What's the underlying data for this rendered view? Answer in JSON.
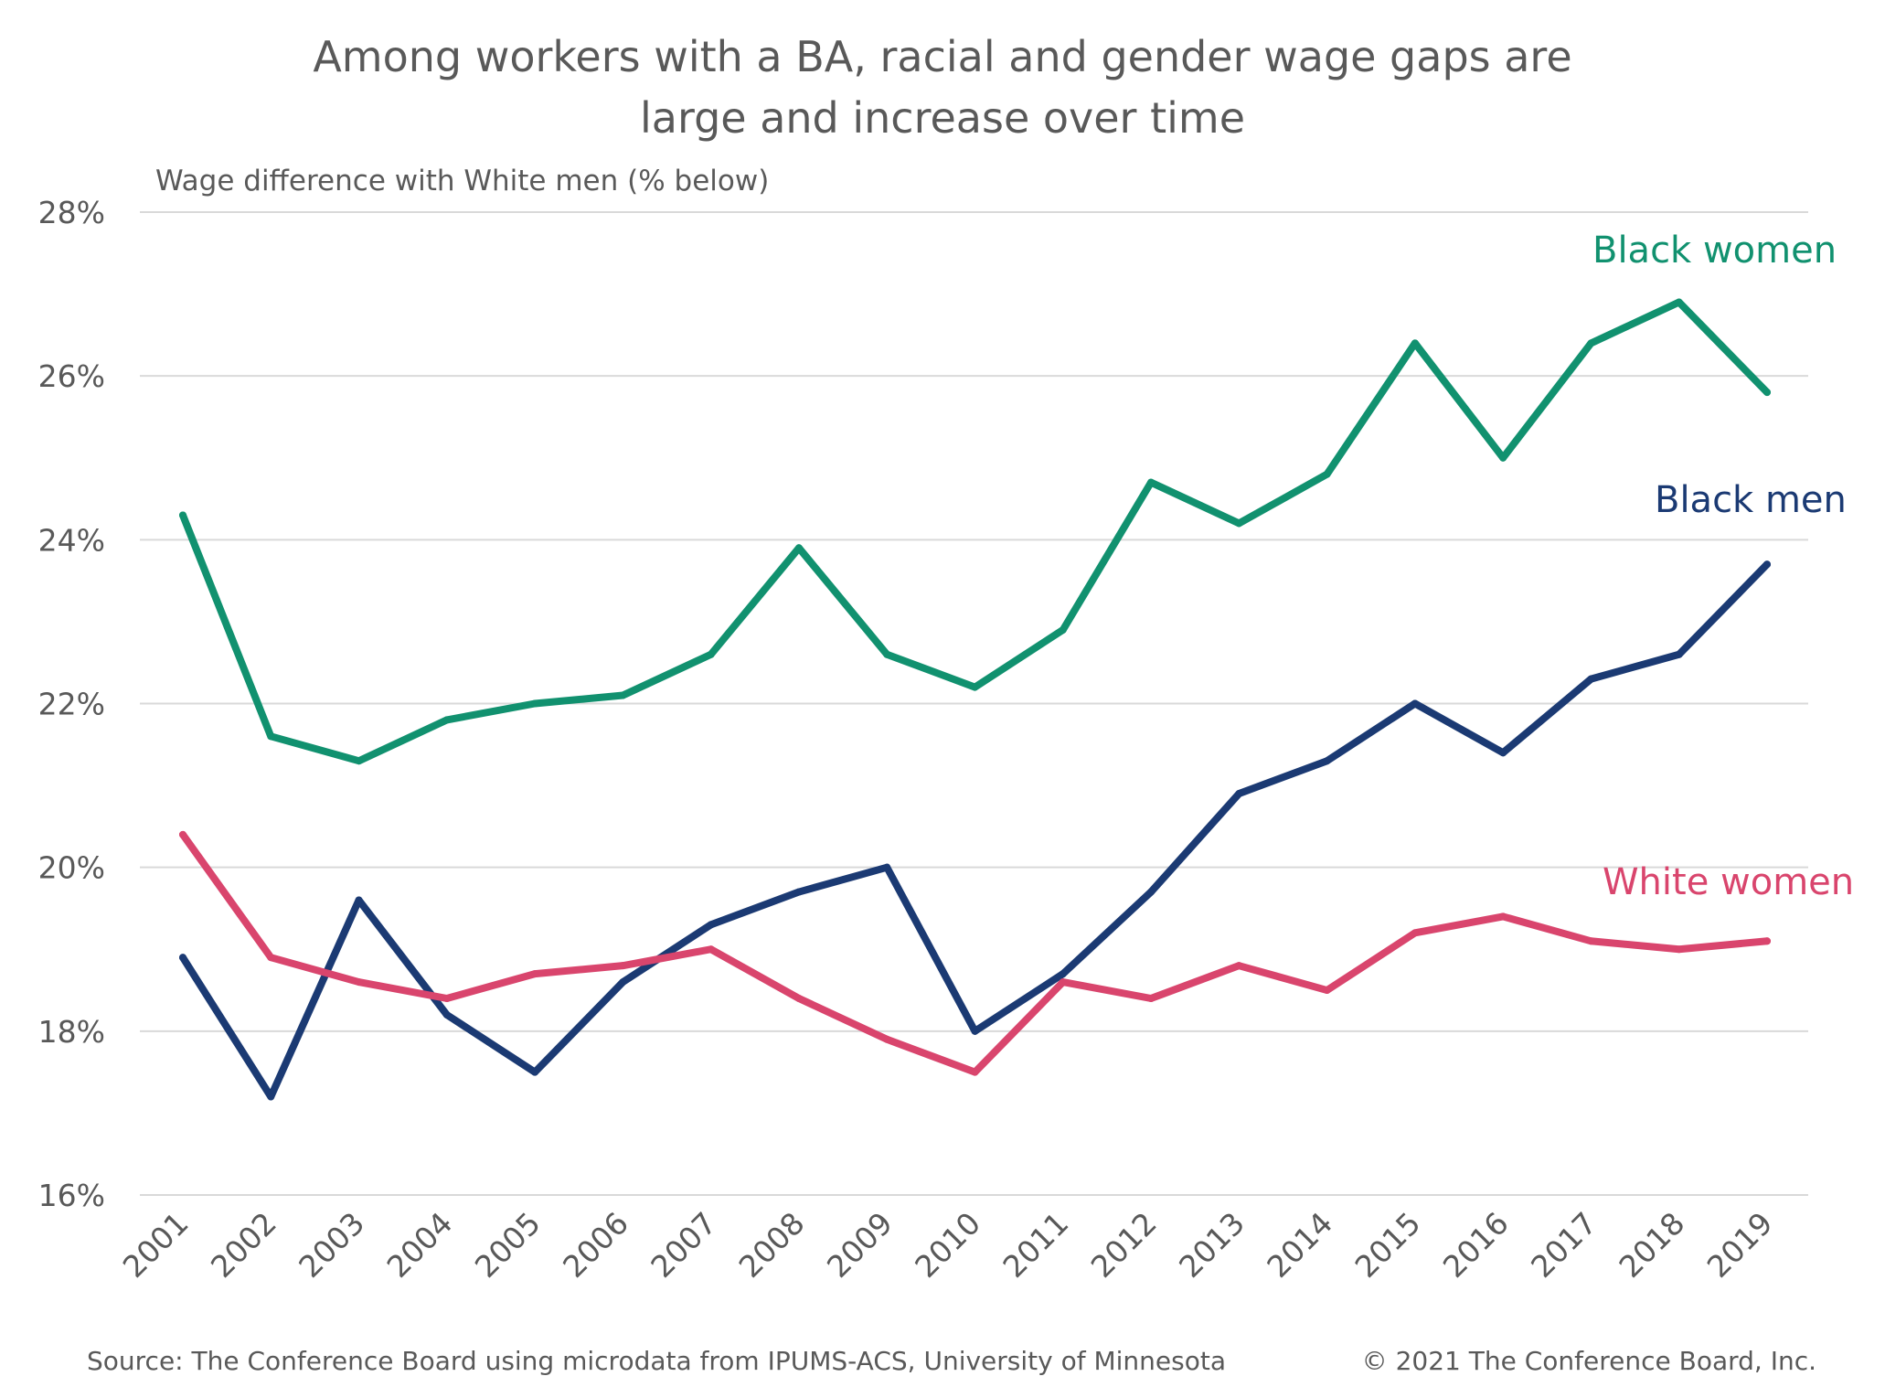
{
  "chart_data": {
    "type": "line",
    "title": [
      "Among workers with a BA, racial and gender wage gaps are",
      "large and increase over time"
    ],
    "ylabel": "Wage difference with White men (% below)",
    "ylim": [
      16,
      28
    ],
    "yticks": [
      "16%",
      "18%",
      "20%",
      "22%",
      "24%",
      "26%",
      "28%"
    ],
    "grid": true,
    "legend": "direct labels near line ends",
    "x": [
      "2001",
      "2002",
      "2003",
      "2004",
      "2005",
      "2006",
      "2007",
      "2008",
      "2009",
      "2010",
      "2011",
      "2012",
      "2013",
      "2014",
      "2015",
      "2016",
      "2017",
      "2018",
      "2019"
    ],
    "series": [
      {
        "name": "Black women",
        "color": "#11916f",
        "values": [
          24.3,
          21.6,
          21.3,
          21.8,
          22.0,
          22.1,
          22.6,
          23.9,
          22.6,
          22.2,
          22.9,
          24.7,
          24.2,
          24.8,
          26.4,
          25.0,
          26.4,
          26.9,
          25.8
        ]
      },
      {
        "name": "Black men",
        "color": "#1b3a73",
        "values": [
          18.9,
          17.2,
          19.6,
          18.2,
          17.5,
          18.6,
          19.3,
          19.7,
          20.0,
          18.0,
          18.7,
          19.7,
          20.9,
          21.3,
          22.0,
          21.4,
          22.3,
          22.6,
          23.7
        ]
      },
      {
        "name": "White women",
        "color": "#d9456d",
        "values": [
          20.4,
          18.9,
          18.6,
          18.4,
          18.7,
          18.8,
          19.0,
          18.4,
          17.9,
          17.5,
          18.6,
          18.4,
          18.8,
          18.5,
          19.2,
          19.4,
          19.1,
          19.0,
          19.1
        ]
      }
    ]
  },
  "footer": {
    "source": "Source: The Conference Board using microdata from IPUMS-ACS, University of Minnesota",
    "copyright": "© 2021 The Conference Board, Inc."
  }
}
